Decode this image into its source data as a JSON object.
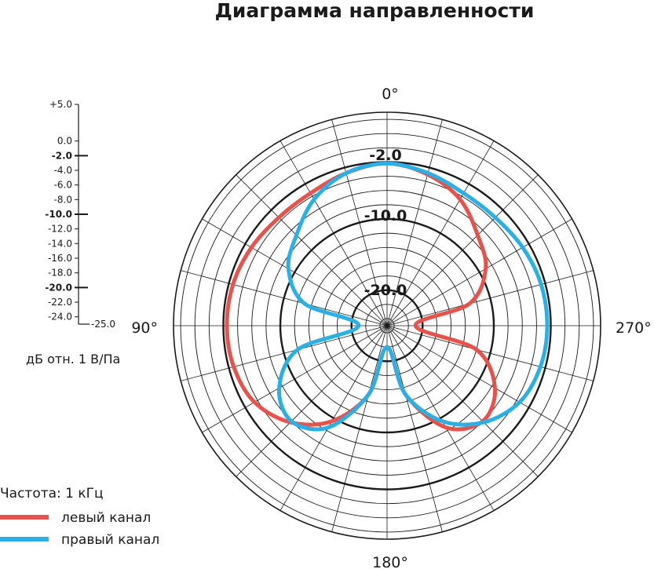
{
  "chart_data": {
    "type": "polar-line",
    "title": "Диаграмма направленности",
    "unit_label": "дБ отн. 1 В/Па",
    "r_range_db": [
      -25,
      5
    ],
    "scale_ticks": [
      {
        "value": 5,
        "label": "+5.0",
        "major": false
      },
      {
        "value": 0,
        "label": "0.0",
        "major": false
      },
      {
        "value": -2,
        "label": "-2.0",
        "major": true
      },
      {
        "value": -4,
        "label": "-4.0",
        "major": false
      },
      {
        "value": -6,
        "label": "-6.0",
        "major": false
      },
      {
        "value": -8,
        "label": "-8.0",
        "major": false
      },
      {
        "value": -10,
        "label": "-10.0",
        "major": true
      },
      {
        "value": -12,
        "label": "-12.0",
        "major": false
      },
      {
        "value": -14,
        "label": "-14.0",
        "major": false
      },
      {
        "value": -16,
        "label": "-16.0",
        "major": false
      },
      {
        "value": -18,
        "label": "-18.0",
        "major": false
      },
      {
        "value": -20,
        "label": "-20.0",
        "major": true
      },
      {
        "value": -22,
        "label": "-22.0",
        "major": false
      },
      {
        "value": -24,
        "label": "-24.0",
        "major": false
      },
      {
        "value": -25,
        "label": "-25.0",
        "major": false
      }
    ],
    "ring_labels": [
      "-2.0",
      "-10.0",
      "-20.0"
    ],
    "angle_labels": [
      "0°",
      "90°",
      "180°",
      "270°"
    ],
    "legend_title": "Частота: 1 кГц",
    "series": [
      {
        "name": "левый канал",
        "color": "#e8524a",
        "points": [
          [
            0,
            -2.2
          ],
          [
            15,
            -2.8
          ],
          [
            30,
            -3.5
          ],
          [
            45,
            -3.5
          ],
          [
            60,
            -3.0
          ],
          [
            75,
            -2.6
          ],
          [
            90,
            -2.5
          ],
          [
            105,
            -2.7
          ],
          [
            120,
            -3.5
          ],
          [
            135,
            -5.8
          ],
          [
            150,
            -9.5
          ],
          [
            165,
            -15
          ],
          [
            180,
            -22
          ],
          [
            195,
            -15
          ],
          [
            210,
            -8.5
          ],
          [
            225,
            -6
          ],
          [
            240,
            -7.5
          ],
          [
            255,
            -12
          ],
          [
            270,
            -21
          ],
          [
            285,
            -13
          ],
          [
            300,
            -9
          ],
          [
            315,
            -7
          ],
          [
            330,
            -4.5
          ],
          [
            345,
            -3
          ]
        ]
      },
      {
        "name": "правый канал",
        "color": "#29b0e6",
        "points": [
          [
            0,
            -2.2
          ],
          [
            15,
            -2.8
          ],
          [
            30,
            -4.5
          ],
          [
            45,
            -7
          ],
          [
            60,
            -9
          ],
          [
            75,
            -13
          ],
          [
            90,
            -21
          ],
          [
            105,
            -12
          ],
          [
            120,
            -7.5
          ],
          [
            135,
            -6
          ],
          [
            150,
            -8.5
          ],
          [
            165,
            -15
          ],
          [
            180,
            -22
          ],
          [
            195,
            -15
          ],
          [
            210,
            -9.5
          ],
          [
            225,
            -5.8
          ],
          [
            240,
            -3.5
          ],
          [
            255,
            -2.7
          ],
          [
            270,
            -2.5
          ],
          [
            285,
            -2.6
          ],
          [
            300,
            -3
          ],
          [
            315,
            -3.5
          ],
          [
            330,
            -3.5
          ],
          [
            345,
            -2.8
          ]
        ]
      }
    ]
  }
}
